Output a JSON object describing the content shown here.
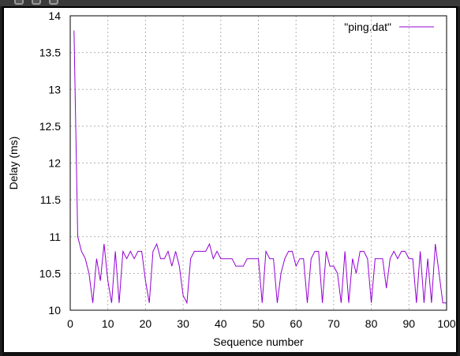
{
  "window": {
    "toolbar_buttons": [
      "close-icon",
      "minimize-icon",
      "maximize-icon"
    ]
  },
  "chart_data": {
    "type": "line",
    "title": "",
    "xlabel": "Sequence number",
    "ylabel": "Delay (ms)",
    "xlim": [
      0,
      100
    ],
    "ylim": [
      10,
      14
    ],
    "xticks": [
      "0",
      "10",
      "20",
      "30",
      "40",
      "50",
      "60",
      "70",
      "80",
      "90",
      "100"
    ],
    "yticks": [
      "10",
      "10.5",
      "11",
      "11.5",
      "12",
      "12.5",
      "13",
      "13.5",
      "14"
    ],
    "grid": true,
    "legend_position": "top-right",
    "colors": {
      "series": "#9400d3",
      "grid": "#b0b0b0"
    },
    "series": [
      {
        "name": "\"ping.dat\"",
        "x": [
          1,
          2,
          3,
          4,
          5,
          6,
          7,
          8,
          9,
          10,
          11,
          12,
          13,
          14,
          15,
          16,
          17,
          18,
          19,
          20,
          21,
          22,
          23,
          24,
          25,
          26,
          27,
          28,
          29,
          30,
          31,
          32,
          33,
          34,
          35,
          36,
          37,
          38,
          39,
          40,
          41,
          42,
          43,
          44,
          45,
          46,
          47,
          48,
          49,
          50,
          51,
          52,
          53,
          54,
          55,
          56,
          57,
          58,
          59,
          60,
          61,
          62,
          63,
          64,
          65,
          66,
          67,
          68,
          69,
          70,
          71,
          72,
          73,
          74,
          75,
          76,
          77,
          78,
          79,
          80,
          81,
          82,
          83,
          84,
          85,
          86,
          87,
          88,
          89,
          90,
          91,
          92,
          93,
          94,
          95,
          96,
          97,
          98,
          99,
          100
        ],
        "y": [
          13.8,
          11.0,
          10.8,
          10.7,
          10.5,
          10.1,
          10.7,
          10.4,
          10.9,
          10.4,
          10.1,
          10.8,
          10.1,
          10.8,
          10.7,
          10.8,
          10.7,
          10.8,
          10.8,
          10.4,
          10.1,
          10.8,
          10.9,
          10.7,
          10.7,
          10.8,
          10.6,
          10.8,
          10.6,
          10.2,
          10.1,
          10.7,
          10.8,
          10.8,
          10.8,
          10.8,
          10.9,
          10.7,
          10.8,
          10.7,
          10.7,
          10.7,
          10.7,
          10.6,
          10.6,
          10.6,
          10.7,
          10.7,
          10.7,
          10.7,
          10.1,
          10.8,
          10.7,
          10.7,
          10.1,
          10.5,
          10.7,
          10.8,
          10.8,
          10.6,
          10.7,
          10.7,
          10.1,
          10.7,
          10.8,
          10.8,
          10.1,
          10.8,
          10.6,
          10.6,
          10.5,
          10.1,
          10.8,
          10.1,
          10.7,
          10.5,
          10.8,
          10.8,
          10.7,
          10.1,
          10.7,
          10.7,
          10.7,
          10.3,
          10.7,
          10.8,
          10.7,
          10.8,
          10.8,
          10.7,
          10.7,
          10.1,
          10.8,
          10.1,
          10.7,
          10.1,
          10.9,
          10.5,
          10.1,
          10.1
        ]
      }
    ]
  }
}
